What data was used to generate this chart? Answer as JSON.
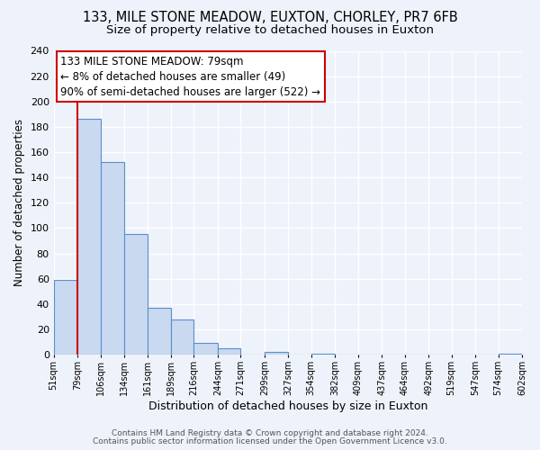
{
  "title_line1": "133, MILE STONE MEADOW, EUXTON, CHORLEY, PR7 6FB",
  "title_line2": "Size of property relative to detached houses in Euxton",
  "xlabel": "Distribution of detached houses by size in Euxton",
  "ylabel": "Number of detached properties",
  "bar_left_edges": [
    51,
    79,
    106,
    134,
    161,
    189,
    216,
    244,
    271,
    299,
    327,
    354,
    382,
    409,
    437,
    464,
    492,
    519,
    547,
    574
  ],
  "bar_widths": [
    28,
    27,
    28,
    27,
    28,
    27,
    28,
    27,
    28,
    28,
    27,
    28,
    27,
    28,
    27,
    28,
    27,
    28,
    27,
    28
  ],
  "bar_heights": [
    59,
    186,
    152,
    95,
    37,
    28,
    9,
    5,
    0,
    2,
    0,
    1,
    0,
    0,
    0,
    0,
    0,
    0,
    0,
    1
  ],
  "tick_labels": [
    "51sqm",
    "79sqm",
    "106sqm",
    "134sqm",
    "161sqm",
    "189sqm",
    "216sqm",
    "244sqm",
    "271sqm",
    "299sqm",
    "327sqm",
    "354sqm",
    "382sqm",
    "409sqm",
    "437sqm",
    "464sqm",
    "492sqm",
    "519sqm",
    "547sqm",
    "574sqm",
    "602sqm"
  ],
  "ylim": [
    0,
    240
  ],
  "yticks": [
    0,
    20,
    40,
    60,
    80,
    100,
    120,
    140,
    160,
    180,
    200,
    220,
    240
  ],
  "bar_color": "#c8d9f0",
  "bar_edge_color": "#5b8fc9",
  "property_line_x": 79,
  "property_line_color": "#cc0000",
  "annotation_line1": "133 MILE STONE MEADOW: 79sqm",
  "annotation_line2": "← 8% of detached houses are smaller (49)",
  "annotation_line3": "90% of semi-detached houses are larger (522) →",
  "annotation_box_color": "#ffffff",
  "annotation_box_edge": "#cc0000",
  "footer_line1": "Contains HM Land Registry data © Crown copyright and database right 2024.",
  "footer_line2": "Contains public sector information licensed under the Open Government Licence v3.0.",
  "background_color": "#eef2fa",
  "plot_background": "#eef2fa",
  "grid_color": "#ffffff",
  "title_fontsize": 10.5,
  "subtitle_fontsize": 9.5,
  "ylabel_fontsize": 8.5,
  "xlabel_fontsize": 9,
  "annotation_fontsize": 8.5,
  "footer_fontsize": 6.5
}
